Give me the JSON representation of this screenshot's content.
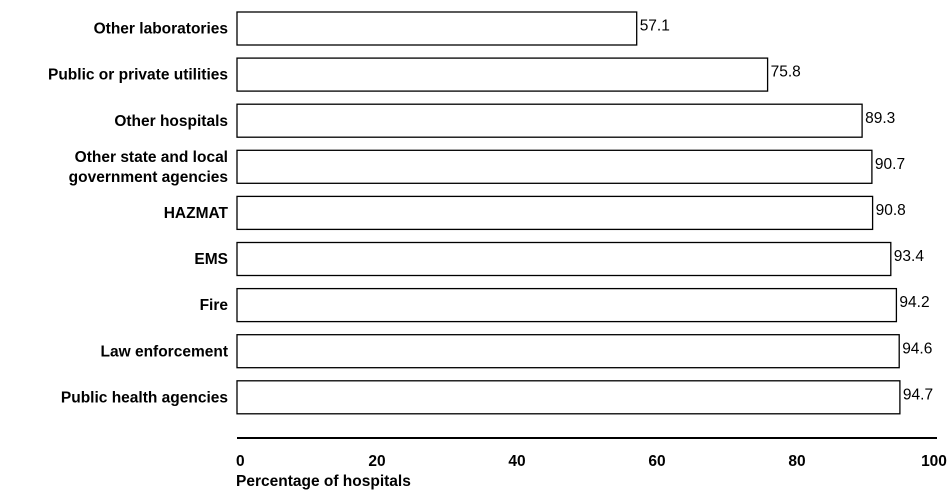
{
  "chart_data": {
    "type": "bar",
    "orientation": "horizontal",
    "categories": [
      [
        "Other laboratories"
      ],
      [
        "Public or private utilities"
      ],
      [
        "Other hospitals"
      ],
      [
        "Other state and local",
        "government agencies"
      ],
      [
        "HAZMAT"
      ],
      [
        "EMS"
      ],
      [
        "Fire"
      ],
      [
        "Law enforcement"
      ],
      [
        "Public health agencies"
      ]
    ],
    "values": [
      57.1,
      75.8,
      89.3,
      90.7,
      90.8,
      93.4,
      94.2,
      94.6,
      94.7
    ],
    "value_labels": [
      "57.1",
      "75.8",
      "89.3",
      "90.7",
      "90.8",
      "93.4",
      "94.2",
      "94.6",
      "94.7"
    ],
    "title": "",
    "xlabel": "Percentage of hospitals",
    "ylabel": "",
    "xlim": [
      0,
      100
    ],
    "ticks": [
      0,
      20,
      40,
      60,
      80,
      100
    ],
    "tick_labels": [
      "0",
      "20",
      "40",
      "60",
      "80",
      "100"
    ],
    "grid": false,
    "bar_fill": "#ffffff",
    "bar_stroke": "#000000"
  }
}
